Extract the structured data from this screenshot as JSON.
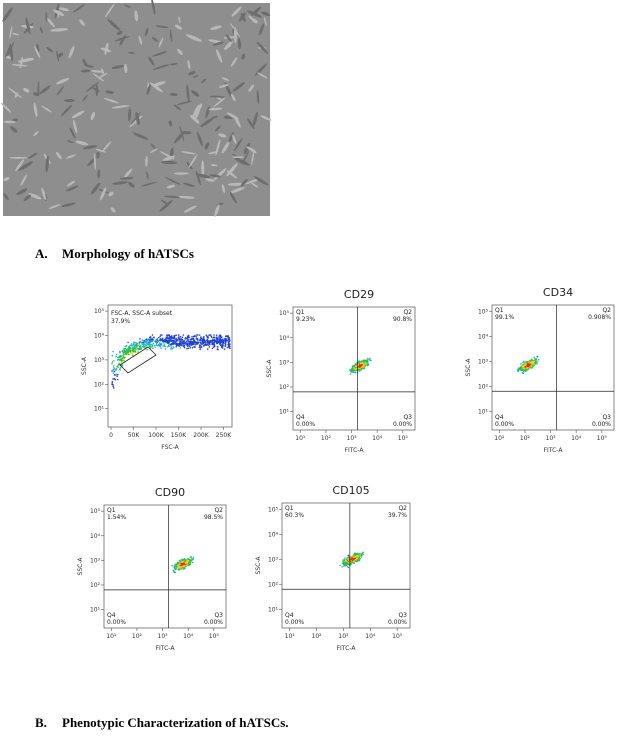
{
  "figure": {
    "morphology_caption": {
      "label": "A.",
      "text": "Morphology of hATSCs"
    },
    "phenotype_caption": {
      "label": "B.",
      "text": "Phenotypic Characterization of hATSCs."
    },
    "log_ticks": [
      "10¹",
      "10²",
      "10³",
      "10⁴",
      "10⁵"
    ],
    "gating_plot": {
      "gate_name": "FSC-A, SSC-A subset",
      "gate_percent": "37.9%",
      "y_label": "SSC-A",
      "x_label": "FSC-A",
      "x_ticks": [
        "0",
        "50K",
        "100K",
        "150K",
        "200K",
        "250K"
      ]
    },
    "marker_plots": [
      {
        "title": "CD29",
        "y_label": "SSC-A",
        "x_label": "FITC-A",
        "quadrants": [
          {
            "name": "Q1",
            "percent": "9.23%"
          },
          {
            "name": "Q2",
            "percent": "90.8%"
          },
          {
            "name": "Q3",
            "percent": "0.00%"
          },
          {
            "name": "Q4",
            "percent": "0.00%"
          }
        ]
      },
      {
        "title": "CD34",
        "y_label": "SSC-A",
        "x_label": "FITC-A",
        "quadrants": [
          {
            "name": "Q1",
            "percent": "99.1%"
          },
          {
            "name": "Q2",
            "percent": "0.908%"
          },
          {
            "name": "Q3",
            "percent": "0.00%"
          },
          {
            "name": "Q4",
            "percent": "0.00%"
          }
        ]
      },
      {
        "title": "CD90",
        "y_label": "SSC-A",
        "x_label": "FITC-A",
        "quadrants": [
          {
            "name": "Q1",
            "percent": "1.54%"
          },
          {
            "name": "Q2",
            "percent": "98.5%"
          },
          {
            "name": "Q3",
            "percent": "0.00%"
          },
          {
            "name": "Q4",
            "percent": "0.00%"
          }
        ]
      },
      {
        "title": "CD105",
        "y_label": "SSC-A",
        "x_label": "FITC-A",
        "quadrants": [
          {
            "name": "Q1",
            "percent": "60.3%"
          },
          {
            "name": "Q2",
            "percent": "39.7%"
          },
          {
            "name": "Q3",
            "percent": "0.00%"
          },
          {
            "name": "Q4",
            "percent": "0.00%"
          }
        ]
      }
    ]
  }
}
